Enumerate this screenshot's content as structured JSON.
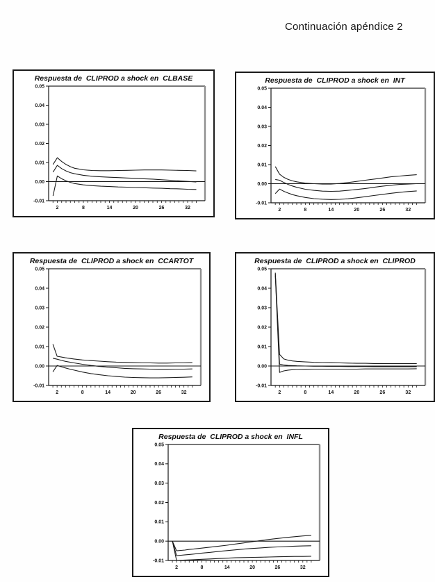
{
  "page": {
    "header": "Continuación apéndice 2"
  },
  "chart_data": [
    {
      "type": "line",
      "title": "Respuesta de  CLIPROD a shock en  CLBASE",
      "xlabel": "",
      "ylabel": "",
      "x_range": [
        1,
        34
      ],
      "ylim": [
        -0.01,
        0.05
      ],
      "grid": "off",
      "legend": "none",
      "y_tick_labels": [
        "0.05",
        "0.04",
        "0.03",
        "0.02",
        "0.01",
        "0.00",
        "-0.01"
      ],
      "x_tick_labels": [
        2,
        8,
        14,
        20,
        26,
        32
      ],
      "x": [
        1,
        2,
        3,
        4,
        5,
        6,
        8,
        10,
        12,
        14,
        16,
        18,
        20,
        22,
        24,
        26,
        28,
        30,
        32,
        34
      ],
      "series": [
        {
          "name": "upper-band",
          "y": [
            0.009,
            0.0125,
            0.0105,
            0.009,
            0.0078,
            0.007,
            0.0062,
            0.0058,
            0.0057,
            0.0057,
            0.0058,
            0.0059,
            0.006,
            0.0061,
            0.0061,
            0.0061,
            0.006,
            0.0059,
            0.0058,
            0.0056
          ]
        },
        {
          "name": "response",
          "y": [
            0.005,
            0.0085,
            0.0068,
            0.0056,
            0.0047,
            0.0041,
            0.0033,
            0.0028,
            0.0025,
            0.0023,
            0.0021,
            0.0019,
            0.0017,
            0.0015,
            0.0013,
            0.001,
            0.0007,
            0.0004,
            0.0001,
            -0.0002
          ]
        },
        {
          "name": "lower-band",
          "y": [
            -0.0075,
            0.003,
            0.0015,
            0.0004,
            -0.0004,
            -0.001,
            -0.0017,
            -0.0021,
            -0.0024,
            -0.0026,
            -0.0028,
            -0.0029,
            -0.0031,
            -0.0032,
            -0.0034,
            -0.0035,
            -0.0037,
            -0.0038,
            -0.004,
            -0.0041
          ]
        }
      ]
    },
    {
      "type": "line",
      "title": "Respuesta de  CLIPROD a shock en  INT",
      "xlabel": "",
      "ylabel": "",
      "x_range": [
        1,
        34
      ],
      "ylim": [
        -0.01,
        0.05
      ],
      "grid": "off",
      "legend": "none",
      "y_tick_labels": [
        "0.05",
        "0.04",
        "0.03",
        "0.02",
        "0.01",
        "0.00",
        "-0.01"
      ],
      "x_tick_labels": [
        2,
        8,
        14,
        20,
        26,
        32
      ],
      "x": [
        1,
        2,
        3,
        4,
        5,
        6,
        8,
        10,
        12,
        14,
        16,
        18,
        20,
        22,
        24,
        26,
        28,
        30,
        32,
        34
      ],
      "series": [
        {
          "name": "upper-band",
          "y": [
            0.009,
            0.005,
            0.0033,
            0.0022,
            0.0015,
            0.001,
            0.0003,
            0.0,
            -0.0002,
            -0.0002,
            0.0001,
            0.0006,
            0.0012,
            0.0018,
            0.0024,
            0.003,
            0.0036,
            0.004,
            0.0044,
            0.0047
          ]
        },
        {
          "name": "response",
          "y": [
            0.0022,
            0.0018,
            0.0006,
            -0.0004,
            -0.0012,
            -0.0019,
            -0.0029,
            -0.0035,
            -0.0039,
            -0.004,
            -0.0039,
            -0.0035,
            -0.003,
            -0.0025,
            -0.0019,
            -0.0013,
            -0.0008,
            -0.0004,
            -0.0002,
            0.0
          ]
        },
        {
          "name": "lower-band",
          "y": [
            -0.0052,
            -0.0028,
            -0.004,
            -0.0049,
            -0.0057,
            -0.0063,
            -0.0072,
            -0.0078,
            -0.0081,
            -0.0083,
            -0.0082,
            -0.0079,
            -0.0074,
            -0.0068,
            -0.0062,
            -0.0056,
            -0.005,
            -0.0045,
            -0.0041,
            -0.0038
          ]
        }
      ]
    },
    {
      "type": "line",
      "title": "Respuesta de  CLIPROD a shock en  CCARTOT",
      "xlabel": "",
      "ylabel": "",
      "x_range": [
        1,
        34
      ],
      "ylim": [
        -0.01,
        0.05
      ],
      "grid": "off",
      "legend": "none",
      "y_tick_labels": [
        "0.05",
        "0.04",
        "0.03",
        "0.02",
        "0.01",
        "0.00",
        "-0.01"
      ],
      "x_tick_labels": [
        2,
        8,
        14,
        20,
        26,
        32
      ],
      "x": [
        1,
        2,
        3,
        4,
        5,
        6,
        8,
        10,
        12,
        14,
        16,
        18,
        20,
        22,
        24,
        26,
        28,
        30,
        32,
        34
      ],
      "series": [
        {
          "name": "upper-band",
          "y": [
            0.0112,
            0.005,
            0.0046,
            0.0042,
            0.0039,
            0.0036,
            0.0031,
            0.0028,
            0.0025,
            0.0022,
            0.002,
            0.0019,
            0.0017,
            0.0016,
            0.0016,
            0.0015,
            0.0015,
            0.0016,
            0.0016,
            0.0017
          ]
        },
        {
          "name": "response",
          "y": [
            0.004,
            0.0035,
            0.0029,
            0.0024,
            0.002,
            0.0016,
            0.0009,
            0.0003,
            -0.0002,
            -0.0006,
            -0.0009,
            -0.0012,
            -0.0014,
            -0.0015,
            -0.0016,
            -0.0017,
            -0.0017,
            -0.0016,
            -0.0016,
            -0.0015
          ]
        },
        {
          "name": "lower-band",
          "y": [
            -0.003,
            0.0003,
            -0.0004,
            -0.001,
            -0.0016,
            -0.0021,
            -0.0031,
            -0.0039,
            -0.0045,
            -0.005,
            -0.0054,
            -0.0057,
            -0.0059,
            -0.006,
            -0.0061,
            -0.0061,
            -0.006,
            -0.0059,
            -0.0058,
            -0.0056
          ]
        }
      ]
    },
    {
      "type": "line",
      "title": "Respuesta de  CLIPROD a shock en  CLIPROD",
      "xlabel": "",
      "ylabel": "",
      "x_range": [
        1,
        34
      ],
      "ylim": [
        -0.01,
        0.05
      ],
      "grid": "off",
      "legend": "none",
      "y_tick_labels": [
        "0.05",
        "0.04",
        "0.03",
        "0.02",
        "0.01",
        "0.00",
        "-0.01"
      ],
      "x_tick_labels": [
        2,
        8,
        14,
        20,
        26,
        32
      ],
      "x": [
        1,
        2,
        3,
        4,
        5,
        6,
        8,
        10,
        12,
        14,
        16,
        18,
        20,
        22,
        24,
        26,
        28,
        30,
        32,
        34
      ],
      "series": [
        {
          "name": "upper-band",
          "y": [
            0.048,
            0.006,
            0.0036,
            0.003,
            0.0026,
            0.0024,
            0.0021,
            0.0019,
            0.0018,
            0.0017,
            0.0016,
            0.0015,
            0.0014,
            0.0014,
            0.0013,
            0.0013,
            0.0012,
            0.0012,
            0.0012,
            0.0012
          ]
        },
        {
          "name": "response",
          "y": [
            0.0473,
            0.001,
            0.0005,
            0.0003,
            0.0002,
            0.0001,
            0.0,
            -0.0001,
            -0.0001,
            -0.0002,
            -0.0002,
            -0.0003,
            -0.0003,
            -0.0003,
            -0.0004,
            -0.0004,
            -0.0004,
            -0.0004,
            -0.0004,
            -0.0004
          ]
        },
        {
          "name": "lower-band",
          "y": [
            0.0465,
            -0.0033,
            -0.0025,
            -0.0021,
            -0.0019,
            -0.0018,
            -0.0017,
            -0.0016,
            -0.0016,
            -0.0016,
            -0.0016,
            -0.0016,
            -0.0016,
            -0.0015,
            -0.0015,
            -0.0015,
            -0.0015,
            -0.0015,
            -0.0015,
            -0.0014
          ]
        }
      ]
    },
    {
      "type": "line",
      "title": "Respuesta de  CLIPROD a shock en  INFL",
      "xlabel": "",
      "ylabel": "",
      "x_range": [
        1,
        34
      ],
      "ylim": [
        -0.01,
        0.05
      ],
      "grid": "off",
      "legend": "none",
      "y_tick_labels": [
        "0.05",
        "0.04",
        "0.03",
        "0.02",
        "0.01",
        "0.00",
        "-0.01"
      ],
      "x_tick_labels": [
        2,
        8,
        14,
        20,
        26,
        32
      ],
      "x": [
        1,
        2,
        3,
        4,
        5,
        6,
        8,
        10,
        12,
        14,
        16,
        18,
        20,
        22,
        24,
        26,
        28,
        30,
        32,
        34
      ],
      "series": [
        {
          "name": "upper-band",
          "y": [
            0.0,
            -0.005,
            -0.0048,
            -0.0046,
            -0.0043,
            -0.0041,
            -0.0036,
            -0.0031,
            -0.0026,
            -0.0021,
            -0.0015,
            -0.0009,
            -0.0003,
            0.0003,
            0.0009,
            0.0014,
            0.0019,
            0.0023,
            0.0027,
            0.003
          ]
        },
        {
          "name": "response",
          "y": [
            0.0,
            -0.0075,
            -0.0073,
            -0.0071,
            -0.0069,
            -0.0067,
            -0.0062,
            -0.0058,
            -0.0053,
            -0.0049,
            -0.0045,
            -0.0041,
            -0.0038,
            -0.0035,
            -0.0032,
            -0.003,
            -0.0028,
            -0.0026,
            -0.0025,
            -0.0024
          ]
        },
        {
          "name": "lower-band",
          "y": [
            0.0,
            -0.01,
            -0.0099,
            -0.0098,
            -0.0097,
            -0.0096,
            -0.0094,
            -0.0092,
            -0.009,
            -0.0088,
            -0.0086,
            -0.0085,
            -0.0084,
            -0.0083,
            -0.0082,
            -0.0081,
            -0.008,
            -0.0079,
            -0.0079,
            -0.0078
          ]
        }
      ]
    }
  ]
}
